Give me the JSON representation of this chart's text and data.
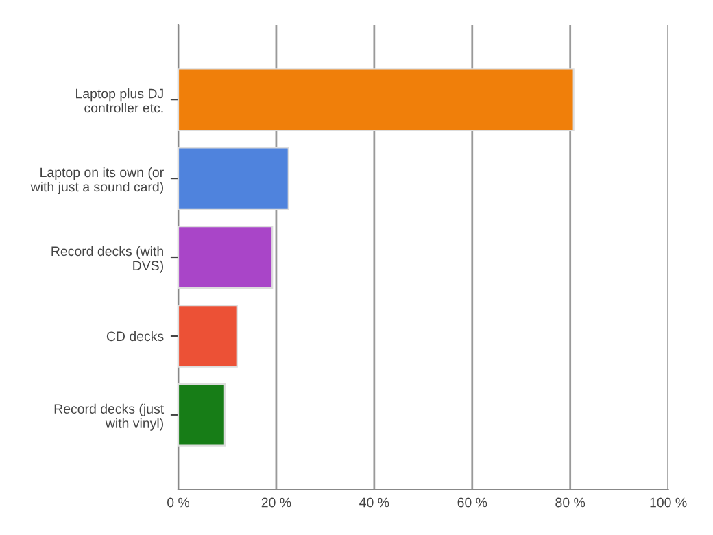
{
  "chart_data": {
    "type": "bar",
    "orientation": "horizontal",
    "categories": [
      "Laptop plus DJ\ncontroller etc.",
      "Laptop on its own (or\nwith just a sound card)",
      "Record decks (with\nDVS)",
      "CD decks",
      "Record decks (just\nwith vinyl)"
    ],
    "values": [
      80.7,
      22.5,
      19.2,
      12.0,
      9.5
    ],
    "colors": [
      "#f07f0a",
      "#4f83dd",
      "#a945c8",
      "#ec5136",
      "#177d17"
    ],
    "xlim": [
      0,
      100
    ],
    "xticks": [
      {
        "value": 0,
        "label": "0 %"
      },
      {
        "value": 20,
        "label": "20 %"
      },
      {
        "value": 40,
        "label": "40 %"
      },
      {
        "value": 60,
        "label": "60 %"
      },
      {
        "value": 80,
        "label": "80 %"
      },
      {
        "value": 100,
        "label": "100 %"
      }
    ],
    "grid": "x",
    "legend": false
  }
}
